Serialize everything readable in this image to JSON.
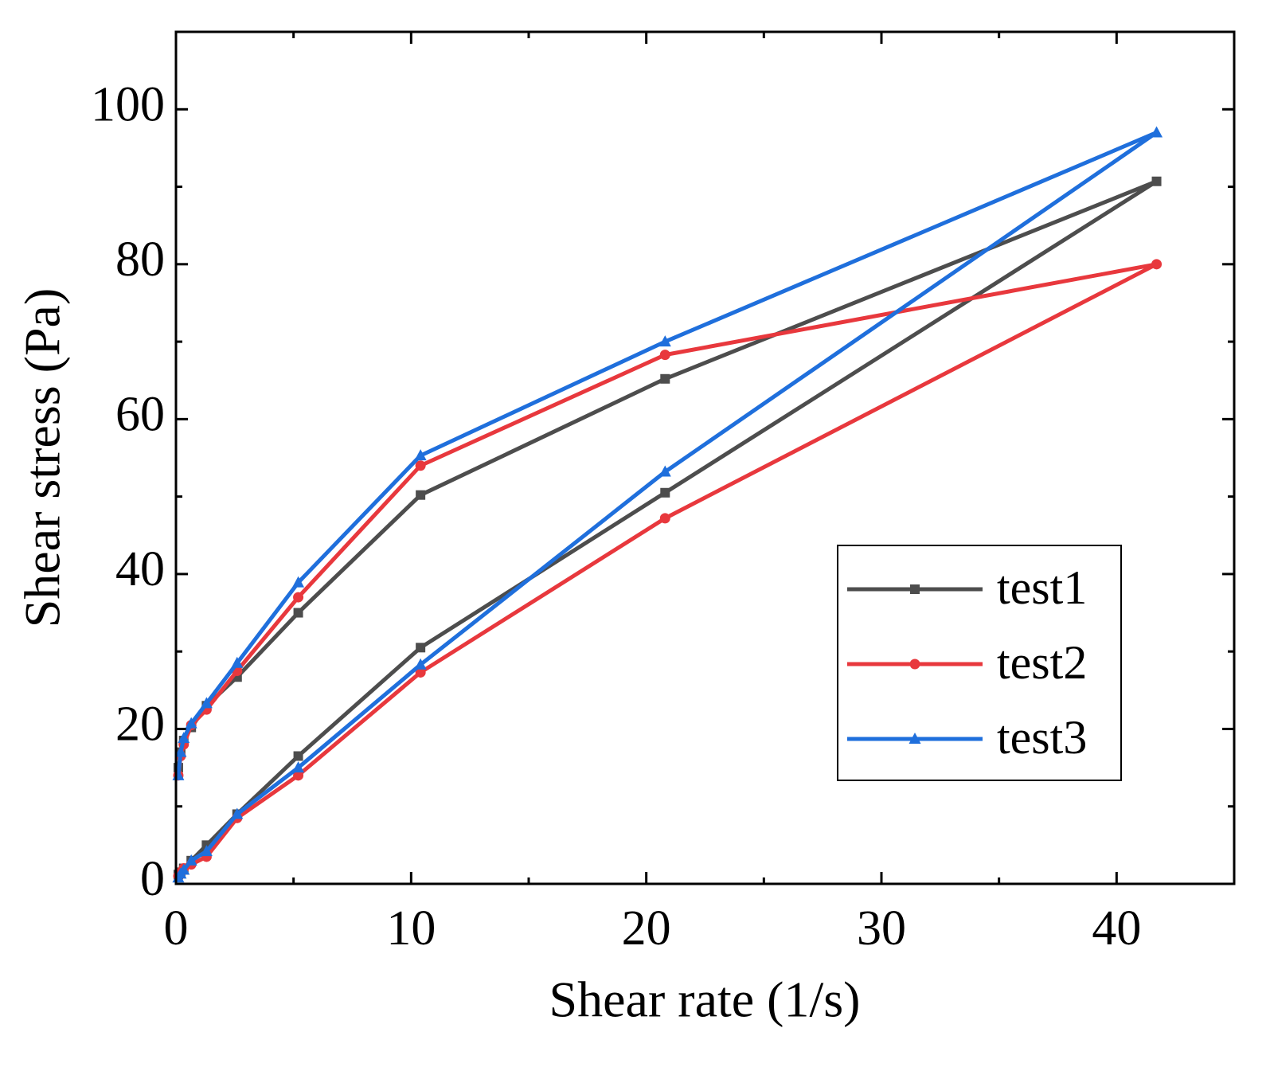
{
  "chart_data": {
    "type": "line",
    "xlabel": "Shear rate (1/s)",
    "ylabel": "Shear stress (Pa)",
    "x": [
      0.1,
      0.2,
      0.33,
      0.65,
      1.3,
      2.6,
      5.2,
      10.4,
      20.8,
      41.7,
      20.8,
      10.4,
      5.2,
      2.6,
      1.3,
      0.65,
      0.33,
      0.2,
      0.1
    ],
    "series": [
      {
        "name": "test1",
        "color": "#4d4d4d",
        "marker": "square",
        "values": [
          1.2,
          1.5,
          2,
          3,
          5,
          9,
          16.5,
          30.5,
          50.5,
          90.7,
          65.2,
          50.2,
          35,
          26.7,
          23,
          20.2,
          18.5,
          17,
          15
        ]
      },
      {
        "name": "test2",
        "color": "#e8383d",
        "marker": "circle",
        "values": [
          1,
          1.5,
          2,
          2.5,
          3.5,
          8.5,
          14,
          27.3,
          47.2,
          80,
          68.3,
          54,
          37,
          27.5,
          22.5,
          20.5,
          18,
          16.5,
          14
        ]
      },
      {
        "name": "test3",
        "color": "#1f6fdc",
        "marker": "triangle",
        "values": [
          0.8,
          1.3,
          1.8,
          3,
          4.2,
          9,
          15,
          28.3,
          53.2,
          97,
          70,
          55.3,
          38.9,
          28.5,
          23.3,
          20.7,
          18.8,
          17,
          14
        ]
      }
    ],
    "xlim": [
      0,
      45
    ],
    "ylim": [
      0,
      110
    ],
    "xticks": [
      0,
      10,
      20,
      30,
      40
    ],
    "yticks": [
      0,
      20,
      40,
      60,
      80,
      100
    ],
    "xminorticks": [
      5,
      15,
      25,
      35
    ],
    "yminorticks": [
      10,
      30,
      50,
      70,
      90
    ],
    "legend": "lower right"
  }
}
